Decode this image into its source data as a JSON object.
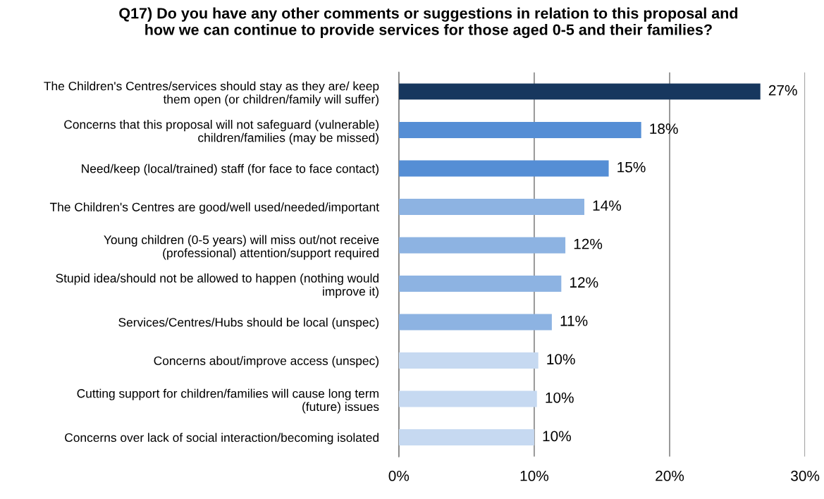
{
  "chart_data": {
    "type": "bar",
    "orientation": "horizontal",
    "title": "Q17) Do you have any other comments or suggestions in relation to this proposal and\nhow we can continue to provide services for those aged 0-5 and their families?",
    "categories": [
      "The Children's Centres/services should stay as they are/ keep\nthem open (or children/family will suffer)",
      "Concerns that this proposal will not safeguard (vulnerable)\nchildren/families (may be missed)",
      "Need/keep (local/trained) staff (for face to face contact)",
      "The Children's Centres are good/well used/needed/important",
      "Young children (0-5 years) will miss out/not receive\n(professional) attention/support required",
      "Stupid idea/should not be allowed to happen (nothing would\nimprove it)",
      "Services/Centres/Hubs should be local (unspec)",
      "Concerns about/improve access (unspec)",
      "Cutting support for children/families will cause long term\n(future) issues",
      "Concerns over lack of social interaction/becoming isolated"
    ],
    "values": [
      26.7,
      17.9,
      15.5,
      13.7,
      12.3,
      12.0,
      11.3,
      10.3,
      10.2,
      10.0
    ],
    "value_labels": [
      "27%",
      "18%",
      "15%",
      "14%",
      "12%",
      "12%",
      "11%",
      "10%",
      "10%",
      "10%"
    ],
    "colors": [
      "#17375e",
      "#558ed5",
      "#558ed5",
      "#8db3e2",
      "#8db3e2",
      "#8db3e2",
      "#8db3e2",
      "#c6d9f1",
      "#c6d9f1",
      "#c6d9f1"
    ],
    "xlim": [
      0,
      30
    ],
    "xticks": [
      {
        "value": 0,
        "label": "0%"
      },
      {
        "value": 10,
        "label": "10%"
      },
      {
        "value": 20,
        "label": "20%"
      },
      {
        "value": 30,
        "label": "30%"
      }
    ],
    "grid": "x",
    "legend": false
  }
}
